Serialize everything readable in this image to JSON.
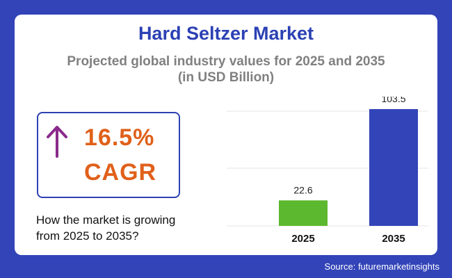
{
  "header": {
    "title": "Hard Seltzer Market",
    "subtitle_line1": "Projected global industry values for 2025 and 2035",
    "subtitle_line2": "(in USD Billion)"
  },
  "cagr": {
    "value": "16.5%",
    "label": "CAGR",
    "icon": "up-arrow-icon"
  },
  "question": {
    "line1": "How the market is growing",
    "line2": "from 2025 to 2035?"
  },
  "source": "Source: futuremarketinsights",
  "colors": {
    "background": "#3244b8",
    "title": "#2c41b4",
    "cagr": "#e0601a",
    "arrow": "#8a2a8c"
  },
  "chart_data": {
    "type": "bar",
    "categories": [
      "2025",
      "2035"
    ],
    "values": [
      22.6,
      103.5
    ],
    "value_labels": [
      "22.6",
      "103.5"
    ],
    "bar_colors": [
      "#5cb82e",
      "#3244b8"
    ],
    "ylim": [
      0,
      103.5
    ],
    "grid": true
  }
}
